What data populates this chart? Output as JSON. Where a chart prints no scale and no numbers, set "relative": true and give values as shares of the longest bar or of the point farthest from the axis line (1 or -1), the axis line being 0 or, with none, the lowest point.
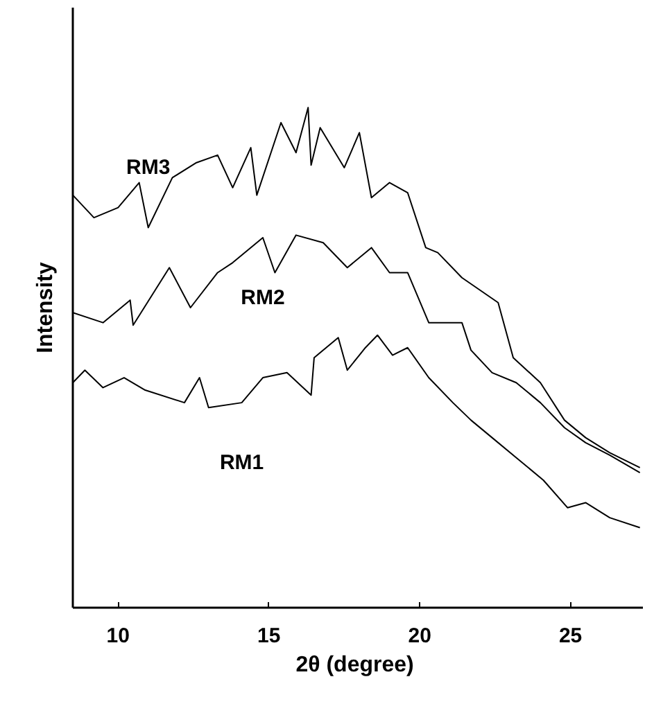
{
  "chart_data": {
    "type": "line",
    "relative": true,
    "xlabel": "2θ  (degree)",
    "ylabel": "Intensity",
    "xlim": [
      8.5,
      27.4
    ],
    "xticks": [
      10,
      15,
      20,
      25
    ],
    "grid": false,
    "tick_labels": "x",
    "marker": "none",
    "line_style": "solid",
    "series": [
      {
        "name": "RM3",
        "color": "#000000",
        "x": [
          8.5,
          9.2,
          10.0,
          10.7,
          11.0,
          11.8,
          12.6,
          13.3,
          13.8,
          14.4,
          14.6,
          15.4,
          15.9,
          16.3,
          16.4,
          16.7,
          17.5,
          18.0,
          18.4,
          19.0,
          19.6,
          20.2,
          20.6,
          21.4,
          22.6,
          23.1,
          24.0,
          24.8,
          25.5,
          26.3,
          27.3
        ],
        "values": [
          0.825,
          0.78,
          0.8,
          0.85,
          0.76,
          0.86,
          0.89,
          0.905,
          0.84,
          0.92,
          0.825,
          0.97,
          0.91,
          1.0,
          0.885,
          0.96,
          0.88,
          0.95,
          0.82,
          0.85,
          0.83,
          0.72,
          0.71,
          0.66,
          0.61,
          0.5,
          0.45,
          0.375,
          0.34,
          0.31,
          0.28
        ]
      },
      {
        "name": "RM2",
        "color": "#000000",
        "x": [
          8.5,
          9.5,
          10.4,
          10.5,
          11.7,
          12.4,
          13.3,
          13.8,
          14.8,
          15.2,
          15.9,
          16.8,
          17.6,
          18.4,
          19.0,
          19.6,
          20.3,
          21.4,
          21.7,
          22.4,
          23.2,
          24.0,
          24.8,
          25.5,
          26.3,
          27.3
        ],
        "values": [
          0.59,
          0.57,
          0.615,
          0.565,
          0.68,
          0.6,
          0.67,
          0.69,
          0.74,
          0.67,
          0.745,
          0.73,
          0.68,
          0.72,
          0.67,
          0.67,
          0.57,
          0.57,
          0.515,
          0.47,
          0.45,
          0.41,
          0.36,
          0.33,
          0.305,
          0.27
        ]
      },
      {
        "name": "RM1",
        "color": "#000000",
        "x": [
          8.5,
          8.9,
          9.5,
          10.2,
          10.9,
          12.2,
          12.7,
          13.0,
          14.1,
          14.8,
          15.6,
          16.4,
          16.5,
          17.3,
          17.6,
          18.2,
          18.6,
          19.1,
          19.6,
          20.3,
          21.1,
          21.7,
          22.4,
          23.2,
          24.1,
          24.9,
          25.5,
          26.3,
          27.3
        ],
        "values": [
          0.45,
          0.475,
          0.44,
          0.46,
          0.435,
          0.41,
          0.46,
          0.4,
          0.41,
          0.46,
          0.47,
          0.425,
          0.5,
          0.54,
          0.475,
          0.52,
          0.545,
          0.505,
          0.52,
          0.46,
          0.41,
          0.375,
          0.34,
          0.3,
          0.255,
          0.2,
          0.21,
          0.18,
          0.16
        ]
      }
    ]
  }
}
